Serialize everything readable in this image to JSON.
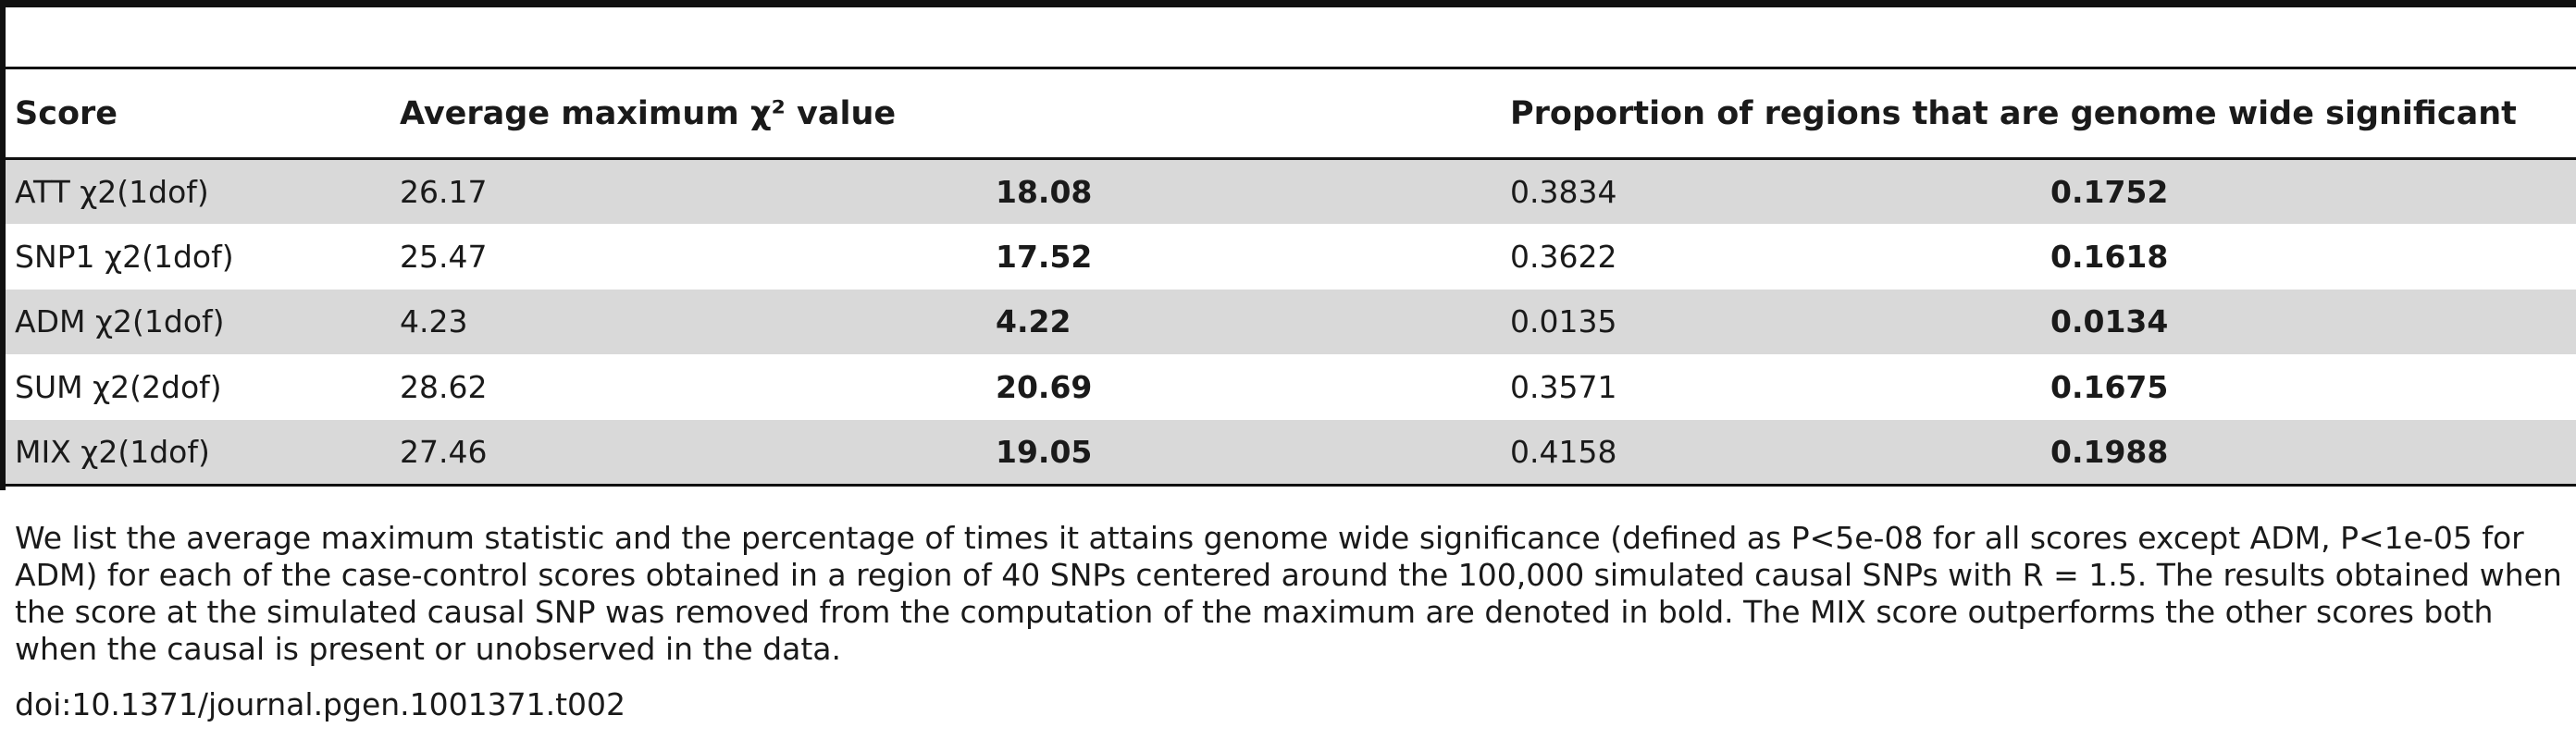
{
  "table": {
    "headers": {
      "score": "Score",
      "average_max": "Average maximum χ² value",
      "proportion": "Proportion of regions that are genome wide significant"
    },
    "rows": [
      {
        "score": "ATT χ2(1dof)",
        "avg": "26.17",
        "avg_bold": "18.08",
        "prop": "0.3834",
        "prop_bold": "0.1752"
      },
      {
        "score": "SNP1 χ2(1dof)",
        "avg": "25.47",
        "avg_bold": "17.52",
        "prop": "0.3622",
        "prop_bold": "0.1618"
      },
      {
        "score": "ADM χ2(1dof)",
        "avg": "4.23",
        "avg_bold": "4.22",
        "prop": "0.0135",
        "prop_bold": "0.0134"
      },
      {
        "score": "SUM χ2(2dof)",
        "avg": "28.62",
        "avg_bold": "20.69",
        "prop": "0.3571",
        "prop_bold": "0.1675"
      },
      {
        "score": "MIX χ2(1dof)",
        "avg": "27.46",
        "avg_bold": "19.05",
        "prop": "0.4158",
        "prop_bold": "0.1988"
      }
    ]
  },
  "footnote": "We list the average maximum statistic and the percentage of times it attains genome wide significance (defined as P<5e-08 for all scores except ADM, P<1e-05 for ADM) for each of the case-control scores obtained in a region of 40 SNPs centered around the 100,000 simulated causal SNPs with R = 1.5. The results obtained when the score at the simulated causal SNP was removed from the computation of the maximum are denoted in bold. The MIX score outperforms the other scores both when the causal is present or unobserved in the data.",
  "doi": "doi:10.1371/journal.pgen.1001371.t002"
}
